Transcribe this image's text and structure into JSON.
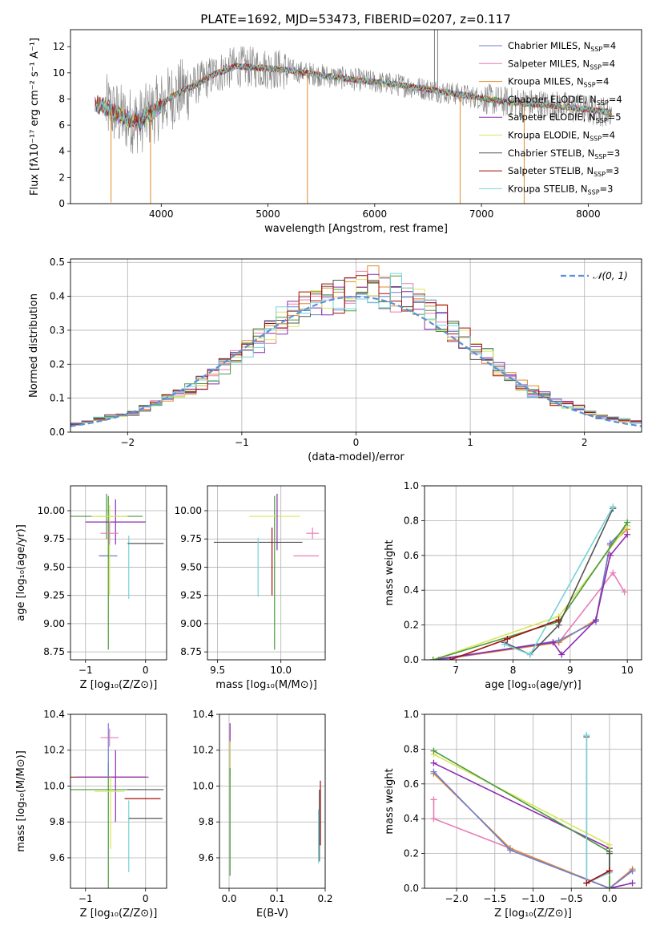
{
  "figure": {
    "title": "PLATE=1692, MJD=53473, FIBERID=0207, z=0.117"
  },
  "colors": {
    "chabrier_miles": "#6c7fd2",
    "salpeter_miles": "#e87db5",
    "kroupa_miles": "#e4882a",
    "chabrier_elodie": "#4b9a3e",
    "salpeter_elodie": "#8c2bb0",
    "kroupa_elodie": "#d9e65a",
    "chabrier_stelib": "#555555",
    "salpeter_stelib": "#a30f0f",
    "kroupa_stelib": "#78d2d8",
    "normal_curve": "#5b8fd6",
    "grid": "#b0b0b0"
  },
  "chart_data": [
    {
      "id": "spectrum",
      "type": "line",
      "xlabel": "wavelength [Angstrom, rest frame]",
      "ylabel": "Flux [fλ10⁻¹⁷ erg cm⁻² s⁻¹ A⁻¹]",
      "xlim": [
        3150,
        8500
      ],
      "ylim": [
        0,
        13.3
      ],
      "xticks": [
        4000,
        5000,
        6000,
        7000,
        8000
      ],
      "yticks": [
        0,
        2,
        4,
        6,
        8,
        10,
        12
      ],
      "grid": false,
      "legend_position": "top-right",
      "legend": [
        {
          "label": "Chabrier MILES, N",
          "sub": "SSP",
          "eq": "=4",
          "color": "#6c7fd2"
        },
        {
          "label": "Salpeter MILES, N",
          "sub": "SSP",
          "eq": "=4",
          "color": "#e87db5"
        },
        {
          "label": "Kroupa MILES, N",
          "sub": "SSP",
          "eq": "=4",
          "color": "#e4882a"
        },
        {
          "label": "Chabrier ELODIE, N",
          "sub": "SSP",
          "eq": "=4",
          "color": "#4b9a3e"
        },
        {
          "label": "Salpeter ELODIE, N",
          "sub": "SSP",
          "eq": "=5",
          "color": "#8c2bb0"
        },
        {
          "label": "Kroupa ELODIE, N",
          "sub": "SSP",
          "eq": "=4",
          "color": "#d9e65a"
        },
        {
          "label": "Chabrier STELIB, N",
          "sub": "SSP",
          "eq": "=3",
          "color": "#555555"
        },
        {
          "label": "Salpeter STELIB, N",
          "sub": "SSP",
          "eq": "=3",
          "color": "#a30f0f"
        },
        {
          "label": "Kroupa STELIB, N",
          "sub": "SSP",
          "eq": "=3",
          "color": "#78d2d8"
        }
      ],
      "continuum": [
        [
          3400,
          7.6
        ],
        [
          3500,
          7.3
        ],
        [
          3650,
          6.5
        ],
        [
          3800,
          6.3
        ],
        [
          3950,
          7.2
        ],
        [
          4100,
          8.2
        ],
        [
          4300,
          9.0
        ],
        [
          4500,
          9.9
        ],
        [
          4700,
          10.5
        ],
        [
          4900,
          10.4
        ],
        [
          5200,
          10.2
        ],
        [
          5500,
          9.8
        ],
        [
          5800,
          9.5
        ],
        [
          6000,
          9.3
        ],
        [
          6300,
          9.0
        ],
        [
          6600,
          8.6
        ],
        [
          6900,
          8.2
        ],
        [
          7200,
          7.8
        ],
        [
          7500,
          7.6
        ],
        [
          7800,
          7.4
        ],
        [
          8000,
          7.2
        ],
        [
          8200,
          7.0
        ]
      ],
      "spikes": [
        {
          "x": 3530,
          "y": 0.1
        },
        {
          "x": 3900,
          "y": 0.0
        },
        {
          "x": 5370,
          "y": 0.0
        },
        {
          "x": 6800,
          "y": 0.0
        },
        {
          "x": 7400,
          "y": 0.0
        },
        {
          "x": 6560,
          "y": 13.3
        },
        {
          "x": 6590,
          "y": 13.3
        }
      ]
    },
    {
      "id": "residuals",
      "type": "line",
      "xlabel": "(data-model)/error",
      "ylabel": "Normed distribution",
      "xlim": [
        -2.5,
        2.5
      ],
      "ylim": [
        0,
        0.51
      ],
      "xticks": [
        -2,
        -1,
        0,
        1,
        2
      ],
      "yticks": [
        0.0,
        0.1,
        0.2,
        0.3,
        0.4,
        0.5
      ],
      "grid": true,
      "legend_position": "top-right",
      "legend": [
        {
          "label": "𝒩(0, 1)",
          "color": "#5b8fd6"
        }
      ],
      "bin_centers": [
        -2.45,
        -2.35,
        -2.25,
        -2.15,
        -2.05,
        -1.95,
        -1.85,
        -1.75,
        -1.65,
        -1.55,
        -1.45,
        -1.35,
        -1.25,
        -1.15,
        -1.05,
        -0.95,
        -0.85,
        -0.75,
        -0.65,
        -0.55,
        -0.45,
        -0.35,
        -0.25,
        -0.15,
        -0.05,
        0.05,
        0.15,
        0.25,
        0.35,
        0.45,
        0.55,
        0.65,
        0.75,
        0.85,
        0.95,
        1.05,
        1.15,
        1.25,
        1.35,
        1.45,
        1.55,
        1.65,
        1.75,
        1.85,
        1.95,
        2.05,
        2.15,
        2.25,
        2.35,
        2.45
      ],
      "base_hist": [
        0.025,
        0.03,
        0.04,
        0.045,
        0.05,
        0.055,
        0.07,
        0.085,
        0.1,
        0.11,
        0.125,
        0.145,
        0.165,
        0.19,
        0.22,
        0.24,
        0.27,
        0.3,
        0.33,
        0.35,
        0.37,
        0.385,
        0.39,
        0.4,
        0.41,
        0.42,
        0.43,
        0.42,
        0.41,
        0.39,
        0.37,
        0.35,
        0.33,
        0.3,
        0.27,
        0.24,
        0.22,
        0.19,
        0.165,
        0.14,
        0.12,
        0.105,
        0.09,
        0.08,
        0.07,
        0.055,
        0.045,
        0.04,
        0.035,
        0.03
      ]
    },
    {
      "id": "age_vs_z",
      "type": "scatter",
      "xlabel": "Z [log₁₀(Z/Z⊙)]",
      "ylabel": "age  [log₁₀(age/yr)]",
      "xlim": [
        -1.25,
        0.35
      ],
      "ylim": [
        8.68,
        10.22
      ],
      "xticks": [
        -1,
        0
      ],
      "yticks": [
        8.75,
        9.0,
        9.25,
        9.5,
        9.75,
        10.0
      ],
      "grid": true,
      "points": [
        {
          "x": -0.68,
          "y": 9.6,
          "xerr": 0.1,
          "yerr": 0.0,
          "color": "#e4882a"
        },
        {
          "x": -0.62,
          "y": 9.6,
          "xerr": 0.15,
          "yerr": 0.0,
          "color": "#6c7fd2"
        },
        {
          "x": -0.65,
          "y": 9.95,
          "xerr": 0.6,
          "yerr": 0.2,
          "color": "#4b9a3e"
        },
        {
          "x": -0.62,
          "y": 9.45,
          "xerr": 0.0,
          "yerr": 0.68,
          "color": "#4b9a3e"
        },
        {
          "x": -0.5,
          "y": 9.9,
          "xerr": 0.5,
          "yerr": 0.2,
          "color": "#8c2bb0"
        },
        {
          "x": -0.6,
          "y": 9.95,
          "xerr": 0.3,
          "yerr": 0.0,
          "color": "#d9e65a"
        },
        {
          "x": -0.6,
          "y": 9.65,
          "xerr": 0.0,
          "yerr": 0.4,
          "color": "#d9e65a"
        },
        {
          "x": -0.6,
          "y": 9.8,
          "xerr": 0.15,
          "yerr": 0.1,
          "color": "#e87db5"
        },
        {
          "x": -0.28,
          "y": 9.5,
          "xerr": 0.0,
          "yerr": 0.28,
          "color": "#78d2d8"
        },
        {
          "x": 0.0,
          "y": 9.71,
          "xerr": 0.3,
          "yerr": 0.0,
          "color": "#555555"
        },
        {
          "x": -0.28,
          "y": 9.95,
          "xerr": 0.0,
          "yerr": 0.0,
          "color": "#a30f0f"
        }
      ]
    },
    {
      "id": "age_vs_mass",
      "type": "scatter",
      "xlabel": "mass [log₁₀(M/M⊙)]",
      "ylabel": "",
      "xlim": [
        9.42,
        10.35
      ],
      "ylim": [
        8.68,
        10.22
      ],
      "xticks": [
        9.5,
        10.0
      ],
      "yticks": [
        8.75,
        9.0,
        9.25,
        9.5,
        9.75,
        10.0
      ],
      "grid": true,
      "points": [
        {
          "x": 9.82,
          "y": 9.72,
          "xerr": 0.35,
          "yerr": 0.0,
          "color": "#555555"
        },
        {
          "x": 9.82,
          "y": 9.5,
          "xerr": 0.0,
          "yerr": 0.26,
          "color": "#78d2d8"
        },
        {
          "x": 9.95,
          "y": 9.45,
          "xerr": 0.0,
          "yerr": 0.68,
          "color": "#4b9a3e"
        },
        {
          "x": 9.95,
          "y": 9.95,
          "xerr": 0.2,
          "yerr": 0.0,
          "color": "#d9e65a"
        },
        {
          "x": 9.97,
          "y": 9.9,
          "xerr": 0.0,
          "yerr": 0.25,
          "color": "#8c2bb0"
        },
        {
          "x": 9.93,
          "y": 9.55,
          "xerr": 0.0,
          "yerr": 0.3,
          "color": "#a30f0f"
        },
        {
          "x": 10.2,
          "y": 9.6,
          "xerr": 0.1,
          "yerr": 0.0,
          "color": "#e87db5"
        },
        {
          "x": 10.25,
          "y": 9.8,
          "xerr": 0.05,
          "yerr": 0.05,
          "color": "#e87db5"
        },
        {
          "x": 10.3,
          "y": 9.6,
          "xerr": 0.0,
          "yerr": 0.0,
          "color": "#6c7fd2"
        }
      ]
    },
    {
      "id": "mass_weight_vs_age",
      "type": "line",
      "xlabel": "age  [log₁₀(age/yr)]",
      "ylabel": "mass weight",
      "xlim": [
        6.45,
        10.25
      ],
      "ylim": [
        0,
        1.0
      ],
      "xticks": [
        7,
        8,
        9,
        10
      ],
      "yticks": [
        0.0,
        0.2,
        0.4,
        0.6,
        0.8,
        1.0
      ],
      "grid": true,
      "series": [
        {
          "color": "#e87db5",
          "x": [
            6.6,
            8.8,
            9.75,
            9.95
          ],
          "y": [
            0.0,
            0.1,
            0.5,
            0.39
          ]
        },
        {
          "color": "#e4882a",
          "x": [
            6.7,
            8.8,
            9.45,
            9.7,
            10.0
          ],
          "y": [
            0.0,
            0.1,
            0.23,
            0.66,
            0.75
          ]
        },
        {
          "color": "#6c7fd2",
          "x": [
            6.7,
            8.8,
            9.45,
            9.7,
            10.0
          ],
          "y": [
            0.0,
            0.11,
            0.22,
            0.67,
            0.77
          ]
        },
        {
          "color": "#8c2bb0",
          "x": [
            6.6,
            8.7,
            8.85,
            9.45,
            9.7,
            10.0
          ],
          "y": [
            0.0,
            0.1,
            0.03,
            0.23,
            0.6,
            0.72
          ]
        },
        {
          "color": "#d9e65a",
          "x": [
            6.6,
            8.8,
            10.0
          ],
          "y": [
            0.0,
            0.25,
            0.77
          ]
        },
        {
          "color": "#4b9a3e",
          "x": [
            6.6,
            8.8,
            10.0
          ],
          "y": [
            0.0,
            0.22,
            0.79
          ]
        },
        {
          "color": "#555555",
          "x": [
            7.85,
            8.3,
            8.8,
            9.75
          ],
          "y": [
            0.1,
            0.03,
            0.2,
            0.87
          ]
        },
        {
          "color": "#78d2d8",
          "x": [
            7.85,
            8.3,
            9.75
          ],
          "y": [
            0.09,
            0.03,
            0.88
          ]
        },
        {
          "color": "#a30f0f",
          "x": [
            6.9,
            7.9,
            8.8
          ],
          "y": [
            0.0,
            0.12,
            0.23
          ]
        }
      ]
    },
    {
      "id": "mass_vs_z",
      "type": "scatter",
      "xlabel": "Z [log₁₀(Z/Z⊙)]",
      "ylabel": "mass [log₁₀(M/M⊙)]",
      "xlim": [
        -1.25,
        0.35
      ],
      "ylim": [
        9.43,
        10.4
      ],
      "xticks": [
        -1,
        0
      ],
      "yticks": [
        9.6,
        9.8,
        10.0,
        10.2,
        10.4
      ],
      "grid": true,
      "points": [
        {
          "x": -0.6,
          "y": 10.27,
          "xerr": 0.15,
          "yerr": 0.05,
          "color": "#e87db5"
        },
        {
          "x": -0.65,
          "y": 10.05,
          "xerr": 0.65,
          "yerr": 0.0,
          "color": "#a30f0f"
        },
        {
          "x": -0.55,
          "y": 10.05,
          "xerr": 0.6,
          "yerr": 0.0,
          "color": "#8c2bb0"
        },
        {
          "x": -0.5,
          "y": 10.0,
          "xerr": 0.0,
          "yerr": 0.2,
          "color": "#8c2bb0"
        },
        {
          "x": -0.65,
          "y": 9.98,
          "xerr": 0.6,
          "yerr": 0.0,
          "color": "#4b9a3e"
        },
        {
          "x": -0.62,
          "y": 9.78,
          "xerr": 0.0,
          "yerr": 0.35,
          "color": "#4b9a3e"
        },
        {
          "x": -0.6,
          "y": 9.97,
          "xerr": 0.25,
          "yerr": 0.0,
          "color": "#d9e65a"
        },
        {
          "x": -0.58,
          "y": 9.85,
          "xerr": 0.0,
          "yerr": 0.2,
          "color": "#d9e65a"
        },
        {
          "x": -0.62,
          "y": 10.2,
          "xerr": 0.0,
          "yerr": 0.15,
          "color": "#6c7fd2"
        },
        {
          "x": -0.05,
          "y": 9.93,
          "xerr": 0.3,
          "yerr": 0.0,
          "color": "#a30f0f"
        },
        {
          "x": 0.0,
          "y": 9.98,
          "xerr": 0.3,
          "yerr": 0.0,
          "color": "#555555"
        },
        {
          "x": -0.28,
          "y": 9.72,
          "xerr": 0.0,
          "yerr": 0.2,
          "color": "#78d2d8"
        },
        {
          "x": 0.0,
          "y": 9.82,
          "xerr": 0.28,
          "yerr": 0.0,
          "color": "#555555"
        }
      ]
    },
    {
      "id": "mass_vs_ebv",
      "type": "scatter",
      "xlabel": "E(B-V)",
      "ylabel": "",
      "xlim": [
        -0.02,
        0.2
      ],
      "ylim": [
        9.43,
        10.4
      ],
      "xticks": [
        0.0,
        0.1,
        0.2
      ],
      "yticks": [
        9.6,
        9.8,
        10.0,
        10.2,
        10.4
      ],
      "grid": true,
      "points": [
        {
          "x": 0.002,
          "y": 10.2,
          "xerr": 0.0,
          "yerr": 0.15,
          "color": "#8c2bb0"
        },
        {
          "x": 0.002,
          "y": 10.05,
          "xerr": 0.0,
          "yerr": 0.2,
          "color": "#d9e65a"
        },
        {
          "x": 0.002,
          "y": 9.8,
          "xerr": 0.0,
          "yerr": 0.3,
          "color": "#4b9a3e"
        },
        {
          "x": 0.19,
          "y": 9.85,
          "xerr": 0.0,
          "yerr": 0.18,
          "color": "#a30f0f"
        },
        {
          "x": 0.188,
          "y": 9.78,
          "xerr": 0.0,
          "yerr": 0.2,
          "color": "#555555"
        },
        {
          "x": 0.186,
          "y": 9.72,
          "xerr": 0.0,
          "yerr": 0.15,
          "color": "#78d2d8"
        }
      ]
    },
    {
      "id": "mass_weight_vs_z",
      "type": "line",
      "xlabel": "Z [log₁₀(Z/Z⊙)]",
      "ylabel": "mass weight",
      "xlim": [
        -2.42,
        0.42
      ],
      "ylim": [
        0,
        1.0
      ],
      "xticks": [
        -2.0,
        -1.5,
        -1.0,
        -0.5,
        0.0
      ],
      "yticks": [
        0.0,
        0.2,
        0.4,
        0.6,
        0.8,
        1.0
      ],
      "grid": true,
      "series": [
        {
          "color": "#e87db5",
          "x": [
            -2.3,
            -2.3,
            -1.3,
            0.0,
            0.3
          ],
          "y": [
            0.51,
            0.4,
            0.23,
            0.0,
            0.1
          ]
        },
        {
          "color": "#e4882a",
          "x": [
            -2.3,
            -1.3,
            0.0,
            0.3
          ],
          "y": [
            0.66,
            0.23,
            0.0,
            0.11
          ]
        },
        {
          "color": "#6c7fd2",
          "x": [
            -2.3,
            -1.3,
            0.0,
            0.3
          ],
          "y": [
            0.67,
            0.22,
            0.0,
            0.1
          ]
        },
        {
          "color": "#8c2bb0",
          "x": [
            -2.3,
            0.0,
            0.0,
            0.3
          ],
          "y": [
            0.72,
            0.23,
            0.0,
            0.03
          ]
        },
        {
          "color": "#d9e65a",
          "x": [
            -2.3,
            0.0,
            0.0
          ],
          "y": [
            0.77,
            0.25,
            0.0
          ]
        },
        {
          "color": "#4b9a3e",
          "x": [
            -2.3,
            0.0,
            0.0
          ],
          "y": [
            0.79,
            0.21,
            0.0
          ]
        },
        {
          "color": "#555555",
          "x": [
            -0.3,
            -0.3,
            0.0,
            0.0
          ],
          "y": [
            0.87,
            0.03,
            0.1,
            0.2
          ]
        },
        {
          "color": "#78d2d8",
          "x": [
            -0.3,
            -0.3,
            0.0
          ],
          "y": [
            0.88,
            0.03,
            0.09
          ]
        },
        {
          "color": "#a30f0f",
          "x": [
            -0.3,
            0.0
          ],
          "y": [
            0.03,
            0.1
          ]
        }
      ]
    }
  ]
}
